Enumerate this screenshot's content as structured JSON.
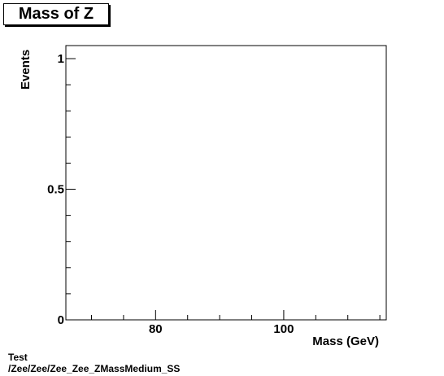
{
  "chart_data": {
    "type": "bar",
    "title": "Mass of Z",
    "xlabel": "Mass (GeV)",
    "ylabel": "Events",
    "xlim": [
      66,
      116
    ],
    "ylim": [
      0,
      1.05
    ],
    "x_ticks_major": [
      80,
      100
    ],
    "x_ticks_minor": [
      70,
      75,
      85,
      90,
      95,
      105,
      110,
      115
    ],
    "y_ticks_major": [
      {
        "value": 0,
        "label": "0"
      },
      {
        "value": 0.5,
        "label": "0.5"
      },
      {
        "value": 1,
        "label": "1"
      }
    ],
    "y_ticks_minor": [
      0.1,
      0.2,
      0.3,
      0.4,
      0.6,
      0.7,
      0.8,
      0.9
    ],
    "series": [
      {
        "values": []
      }
    ],
    "grid": false,
    "legend": "none"
  },
  "footer": {
    "line1": "Test",
    "line2": "/Zee/Zee/Zee_Zee_ZMassMedium_SS"
  }
}
